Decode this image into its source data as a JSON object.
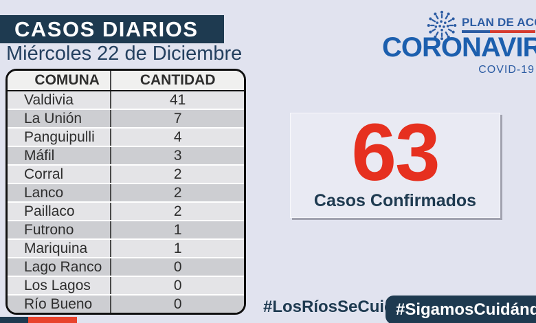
{
  "colors": {
    "bg": "#e1e3ef",
    "navy": "#1e3a50",
    "dateblue": "#24405f",
    "brandblue": "#1c5fae",
    "planblue": "#2c5ca3",
    "flagred": "#d63a2f",
    "red": "#e6301f",
    "cornerred": "#e8432c"
  },
  "header": {
    "title": "CASOS DIARIOS",
    "date": "Miércoles 22 de Diciembre"
  },
  "brand": {
    "plan_label": "PLAN DE ACCIÓN",
    "name": "CORONAVIRUS",
    "subtitle": "COVID-19"
  },
  "table": {
    "columns": [
      "COMUNA",
      "CANTIDAD"
    ],
    "rows": [
      {
        "comuna": "Valdivia",
        "cantidad": "41"
      },
      {
        "comuna": "La Unión",
        "cantidad": "7"
      },
      {
        "comuna": "Panguipulli",
        "cantidad": "4"
      },
      {
        "comuna": "Máfil",
        "cantidad": "3"
      },
      {
        "comuna": "Corral",
        "cantidad": "2"
      },
      {
        "comuna": "Lanco",
        "cantidad": "2"
      },
      {
        "comuna": "Paillaco",
        "cantidad": "2"
      },
      {
        "comuna": "Futrono",
        "cantidad": "1"
      },
      {
        "comuna": "Mariquina",
        "cantidad": "1"
      },
      {
        "comuna": "Lago Ranco",
        "cantidad": "0"
      },
      {
        "comuna": "Los Lagos",
        "cantidad": "0"
      },
      {
        "comuna": "Río Bueno",
        "cantidad": "0"
      }
    ]
  },
  "summary": {
    "value": "63",
    "label": "Casos Confirmados"
  },
  "footer": {
    "hashtag_plain": "#LosRíosSeCuida",
    "hashtag_banner": "#SigamosCuidándonos"
  },
  "chart_data": {
    "type": "table",
    "title": "CASOS DIARIOS",
    "subtitle": "Miércoles 22 de Diciembre",
    "columns": [
      "COMUNA",
      "CANTIDAD"
    ],
    "categories": [
      "Valdivia",
      "La Unión",
      "Panguipulli",
      "Máfil",
      "Corral",
      "Lanco",
      "Paillaco",
      "Futrono",
      "Mariquina",
      "Lago Ranco",
      "Los Lagos",
      "Río Bueno"
    ],
    "values": [
      41,
      7,
      4,
      3,
      2,
      2,
      2,
      1,
      1,
      0,
      0,
      0
    ],
    "total_confirmed": 63,
    "total_label": "Casos Confirmados"
  }
}
